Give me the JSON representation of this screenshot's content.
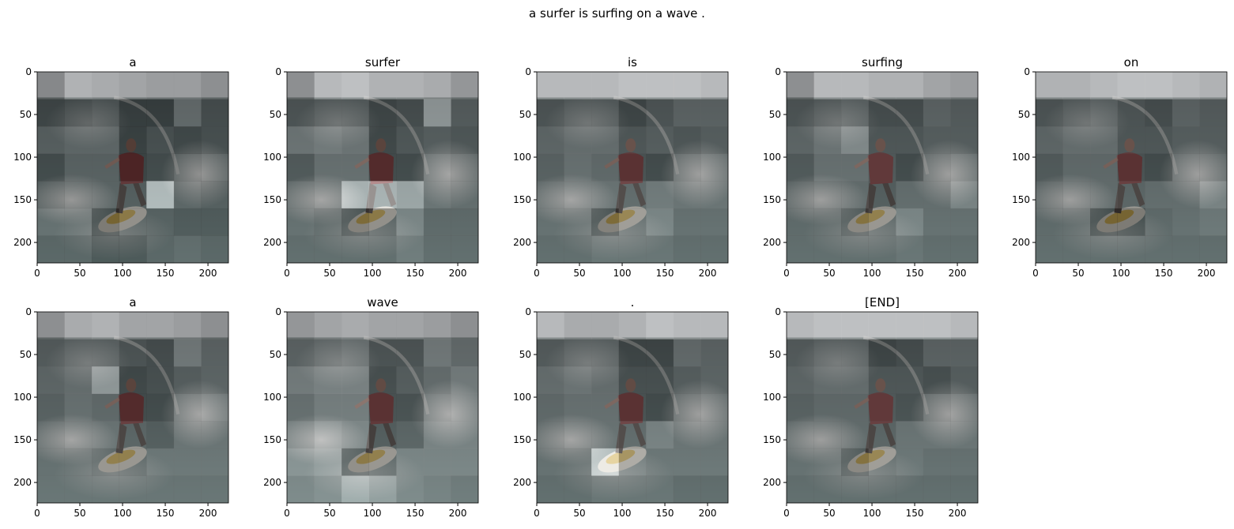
{
  "suptitle": "a surfer is surfing on a wave .",
  "chart_data": {
    "type": "heatmap",
    "title": "a surfer is surfing on a wave .",
    "layout": "2 rows x 5 columns, last panel empty",
    "background": "photo of a surfer in a red shirt riding a wave on a yellow/white surfboard",
    "overlay_colormap": "gray",
    "grid_size": [
      7,
      7
    ],
    "xlim": [
      0,
      224
    ],
    "ylim": [
      224,
      0
    ],
    "xticks": [
      0,
      50,
      100,
      150,
      200
    ],
    "yticks": [
      0,
      50,
      100,
      150,
      200
    ],
    "panels": [
      {
        "title": "a",
        "attention": [
          [
            0.4,
            0.7,
            0.65,
            0.6,
            0.55,
            0.55,
            0.45
          ],
          [
            0.2,
            0.25,
            0.3,
            0.15,
            0.15,
            0.45,
            0.25
          ],
          [
            0.35,
            0.4,
            0.4,
            0.15,
            0.25,
            0.2,
            0.25
          ],
          [
            0.2,
            0.35,
            0.35,
            0.15,
            0.2,
            0.3,
            0.35
          ],
          [
            0.3,
            0.35,
            0.35,
            0.3,
            0.95,
            0.35,
            0.3
          ],
          [
            0.4,
            0.4,
            0.15,
            0.3,
            0.3,
            0.25,
            0.25
          ],
          [
            0.3,
            0.3,
            0.2,
            0.2,
            0.3,
            0.35,
            0.3
          ]
        ]
      },
      {
        "title": "surfer",
        "attention": [
          [
            0.45,
            0.75,
            0.8,
            0.7,
            0.7,
            0.65,
            0.5
          ],
          [
            0.3,
            0.35,
            0.35,
            0.2,
            0.25,
            0.75,
            0.35
          ],
          [
            0.5,
            0.55,
            0.5,
            0.2,
            0.3,
            0.35,
            0.3
          ],
          [
            0.3,
            0.45,
            0.45,
            0.2,
            0.2,
            0.45,
            0.4
          ],
          [
            0.4,
            0.45,
            0.9,
            0.9,
            0.8,
            0.45,
            0.4
          ],
          [
            0.4,
            0.35,
            0.2,
            0.3,
            0.55,
            0.35,
            0.35
          ],
          [
            0.35,
            0.35,
            0.35,
            0.35,
            0.45,
            0.35,
            0.35
          ]
        ]
      },
      {
        "title": "is",
        "attention": [
          [
            0.75,
            0.75,
            0.75,
            0.8,
            0.8,
            0.8,
            0.75
          ],
          [
            0.3,
            0.35,
            0.35,
            0.2,
            0.3,
            0.4,
            0.4
          ],
          [
            0.4,
            0.45,
            0.45,
            0.3,
            0.35,
            0.3,
            0.35
          ],
          [
            0.35,
            0.45,
            0.4,
            0.25,
            0.2,
            0.4,
            0.45
          ],
          [
            0.4,
            0.45,
            0.45,
            0.4,
            0.5,
            0.45,
            0.45
          ],
          [
            0.4,
            0.4,
            0.2,
            0.4,
            0.55,
            0.4,
            0.4
          ],
          [
            0.35,
            0.35,
            0.4,
            0.4,
            0.4,
            0.35,
            0.35
          ]
        ]
      },
      {
        "title": "surfing",
        "attention": [
          [
            0.45,
            0.75,
            0.75,
            0.7,
            0.7,
            0.6,
            0.55
          ],
          [
            0.3,
            0.35,
            0.4,
            0.25,
            0.25,
            0.4,
            0.35
          ],
          [
            0.4,
            0.5,
            0.65,
            0.3,
            0.3,
            0.35,
            0.35
          ],
          [
            0.3,
            0.45,
            0.45,
            0.3,
            0.2,
            0.4,
            0.45
          ],
          [
            0.35,
            0.4,
            0.4,
            0.3,
            0.4,
            0.4,
            0.55
          ],
          [
            0.35,
            0.35,
            0.25,
            0.35,
            0.55,
            0.4,
            0.4
          ],
          [
            0.35,
            0.35,
            0.35,
            0.35,
            0.4,
            0.35,
            0.35
          ]
        ]
      },
      {
        "title": "on",
        "attention": [
          [
            0.7,
            0.7,
            0.75,
            0.8,
            0.8,
            0.75,
            0.7
          ],
          [
            0.3,
            0.35,
            0.4,
            0.3,
            0.25,
            0.4,
            0.35
          ],
          [
            0.4,
            0.45,
            0.45,
            0.3,
            0.3,
            0.35,
            0.35
          ],
          [
            0.3,
            0.4,
            0.4,
            0.25,
            0.2,
            0.4,
            0.4
          ],
          [
            0.35,
            0.4,
            0.4,
            0.35,
            0.4,
            0.4,
            0.55
          ],
          [
            0.35,
            0.35,
            0.15,
            0.15,
            0.35,
            0.4,
            0.45
          ],
          [
            0.35,
            0.35,
            0.35,
            0.35,
            0.35,
            0.35,
            0.35
          ]
        ]
      },
      {
        "title": "a",
        "attention": [
          [
            0.45,
            0.65,
            0.7,
            0.6,
            0.6,
            0.55,
            0.45
          ],
          [
            0.35,
            0.4,
            0.4,
            0.3,
            0.25,
            0.55,
            0.4
          ],
          [
            0.4,
            0.45,
            0.75,
            0.2,
            0.25,
            0.35,
            0.4
          ],
          [
            0.35,
            0.45,
            0.4,
            0.2,
            0.2,
            0.45,
            0.5
          ],
          [
            0.4,
            0.45,
            0.45,
            0.35,
            0.3,
            0.45,
            0.45
          ],
          [
            0.4,
            0.4,
            0.35,
            0.35,
            0.45,
            0.45,
            0.45
          ],
          [
            0.4,
            0.4,
            0.4,
            0.4,
            0.4,
            0.4,
            0.4
          ]
        ]
      },
      {
        "title": "wave",
        "attention": [
          [
            0.5,
            0.6,
            0.65,
            0.6,
            0.6,
            0.55,
            0.45
          ],
          [
            0.4,
            0.45,
            0.5,
            0.3,
            0.3,
            0.55,
            0.45
          ],
          [
            0.55,
            0.6,
            0.6,
            0.25,
            0.35,
            0.45,
            0.55
          ],
          [
            0.45,
            0.55,
            0.55,
            0.25,
            0.25,
            0.5,
            0.55
          ],
          [
            0.55,
            0.65,
            0.6,
            0.3,
            0.35,
            0.55,
            0.55
          ],
          [
            0.65,
            0.7,
            0.3,
            0.35,
            0.55,
            0.55,
            0.55
          ],
          [
            0.55,
            0.6,
            0.8,
            0.7,
            0.55,
            0.5,
            0.45
          ]
        ]
      },
      {
        "title": ".",
        "attention": [
          [
            0.75,
            0.65,
            0.65,
            0.7,
            0.8,
            0.75,
            0.75
          ],
          [
            0.35,
            0.4,
            0.4,
            0.2,
            0.2,
            0.45,
            0.4
          ],
          [
            0.45,
            0.5,
            0.45,
            0.25,
            0.25,
            0.35,
            0.4
          ],
          [
            0.4,
            0.45,
            0.45,
            0.25,
            0.2,
            0.4,
            0.45
          ],
          [
            0.4,
            0.45,
            0.45,
            0.4,
            0.55,
            0.45,
            0.45
          ],
          [
            0.4,
            0.4,
            0.95,
            0.5,
            0.45,
            0.45,
            0.45
          ],
          [
            0.35,
            0.35,
            0.4,
            0.4,
            0.4,
            0.35,
            0.35
          ]
        ]
      },
      {
        "title": "[END]",
        "attention": [
          [
            0.75,
            0.8,
            0.8,
            0.8,
            0.8,
            0.8,
            0.75
          ],
          [
            0.35,
            0.4,
            0.4,
            0.2,
            0.25,
            0.4,
            0.4
          ],
          [
            0.4,
            0.45,
            0.45,
            0.3,
            0.3,
            0.25,
            0.35
          ],
          [
            0.35,
            0.4,
            0.4,
            0.3,
            0.25,
            0.4,
            0.45
          ],
          [
            0.4,
            0.4,
            0.4,
            0.35,
            0.45,
            0.45,
            0.45
          ],
          [
            0.4,
            0.4,
            0.25,
            0.4,
            0.45,
            0.4,
            0.4
          ],
          [
            0.35,
            0.35,
            0.35,
            0.35,
            0.35,
            0.35,
            0.35
          ]
        ]
      }
    ]
  }
}
